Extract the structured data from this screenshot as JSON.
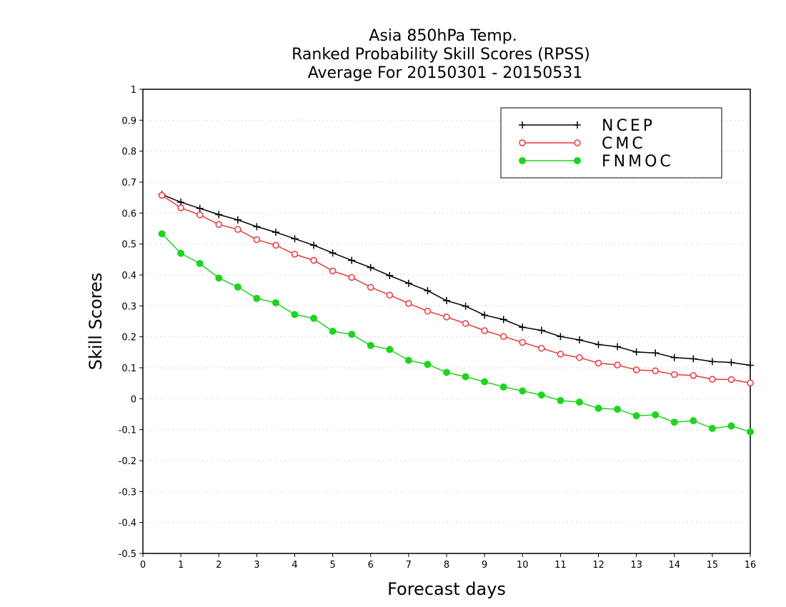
{
  "chart_data": {
    "type": "line",
    "title_lines": [
      "Asia 850hPa Temp.",
      "Ranked Probability Skill Scores (RPSS)",
      "Average For 20150301 - 20150531"
    ],
    "xlabel": "Forecast days",
    "ylabel": "Skill Scores",
    "xlim": [
      0,
      16
    ],
    "ylim": [
      -0.5,
      1
    ],
    "x_ticks": [
      "0",
      "1",
      "2",
      "3",
      "4",
      "5",
      "6",
      "7",
      "8",
      "9",
      "10",
      "11",
      "12",
      "13",
      "14",
      "15",
      "16"
    ],
    "y_ticks": [
      "-0.5",
      "-0.4",
      "-0.3",
      "-0.2",
      "-0.1",
      "0",
      "0.1",
      "0.2",
      "0.3",
      "0.4",
      "0.5",
      "0.6",
      "0.7",
      "0.8",
      "0.9",
      "1"
    ],
    "grid": "horizontal dotted",
    "legend_position": "top-right",
    "x": [
      0.5,
      1,
      1.5,
      2,
      2.5,
      3,
      3.5,
      4,
      4.5,
      5,
      5.5,
      6,
      6.5,
      7,
      7.5,
      8,
      8.5,
      9,
      9.5,
      10,
      10.5,
      11,
      11.5,
      12,
      12.5,
      13,
      13.5,
      14,
      14.5,
      15,
      15.5,
      16
    ],
    "series": [
      {
        "name": "NCEP",
        "color": "#000000",
        "marker": "plus",
        "values": [
          0.66,
          0.635,
          0.615,
          0.595,
          0.578,
          0.556,
          0.538,
          0.517,
          0.496,
          0.471,
          0.447,
          0.424,
          0.398,
          0.373,
          0.349,
          0.317,
          0.299,
          0.27,
          0.256,
          0.231,
          0.221,
          0.201,
          0.19,
          0.175,
          0.168,
          0.151,
          0.148,
          0.133,
          0.129,
          0.12,
          0.117,
          0.108
        ]
      },
      {
        "name": "CMC",
        "color": "#e8383b",
        "marker": "open-circle",
        "values": [
          0.657,
          0.617,
          0.594,
          0.563,
          0.547,
          0.514,
          0.496,
          0.467,
          0.447,
          0.413,
          0.392,
          0.36,
          0.335,
          0.308,
          0.283,
          0.264,
          0.243,
          0.22,
          0.201,
          0.182,
          0.163,
          0.144,
          0.133,
          0.115,
          0.109,
          0.093,
          0.09,
          0.078,
          0.075,
          0.063,
          0.062,
          0.051
        ]
      },
      {
        "name": "FNMOC",
        "color": "#1ed41e",
        "marker": "filled-circle",
        "values": [
          0.533,
          0.47,
          0.437,
          0.39,
          0.361,
          0.324,
          0.31,
          0.272,
          0.26,
          0.218,
          0.208,
          0.172,
          0.159,
          0.124,
          0.111,
          0.085,
          0.071,
          0.055,
          0.038,
          0.025,
          0.012,
          -0.006,
          -0.011,
          -0.031,
          -0.034,
          -0.055,
          -0.052,
          -0.076,
          -0.071,
          -0.096,
          -0.088,
          -0.107
        ]
      }
    ]
  }
}
